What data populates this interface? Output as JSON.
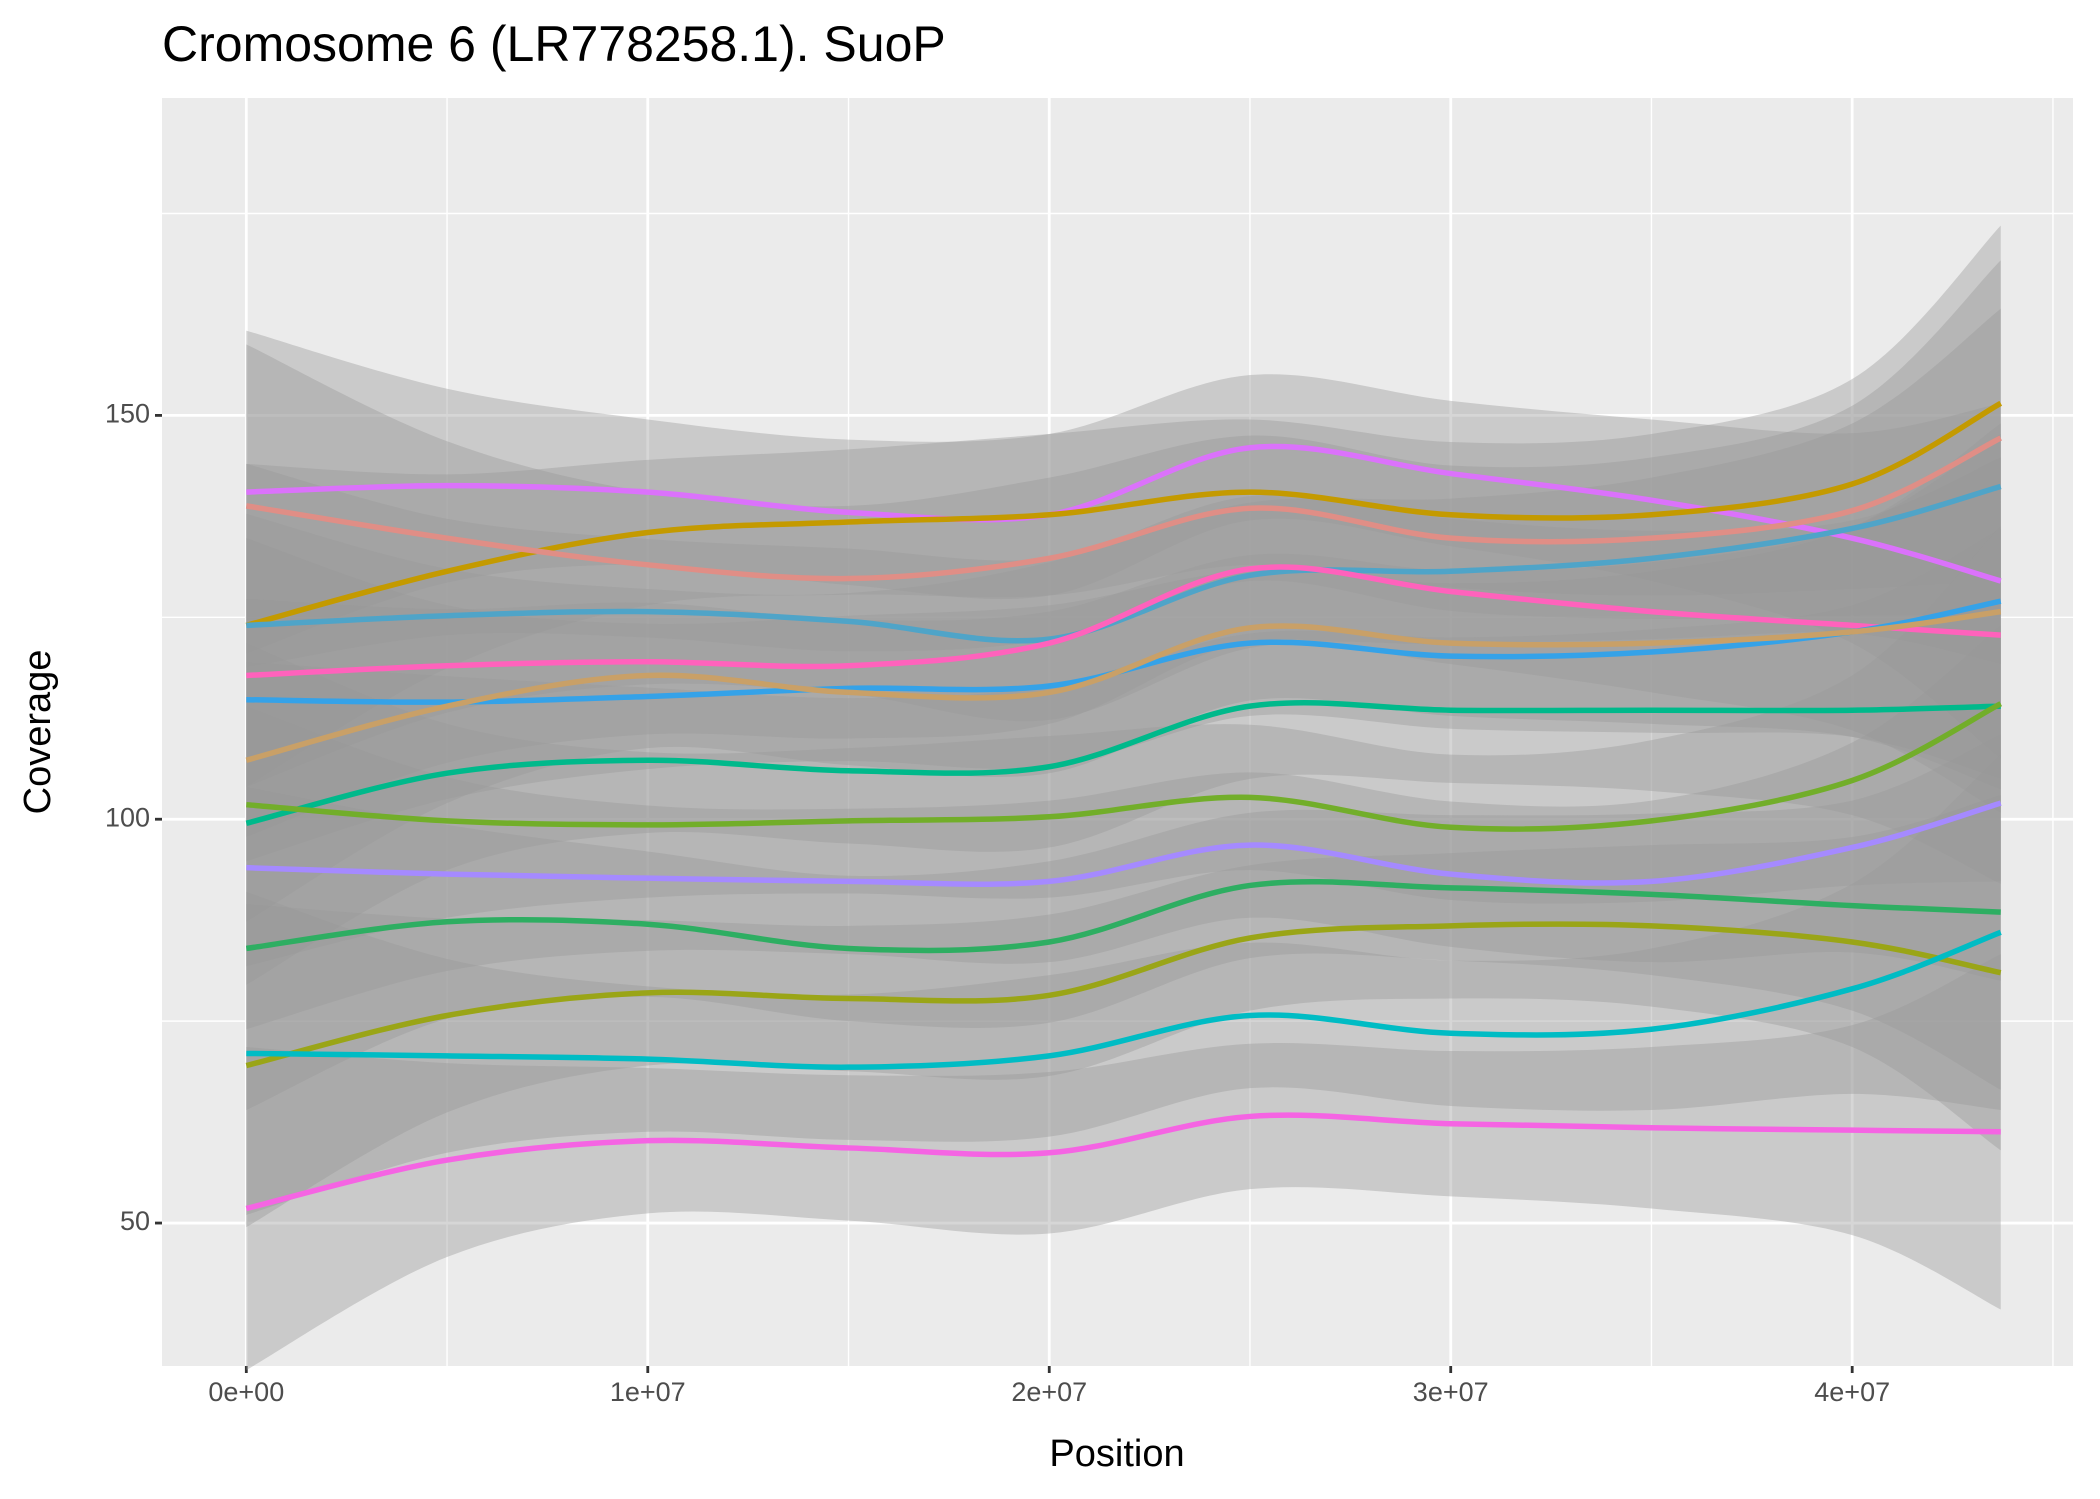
{
  "chart_data": {
    "type": "line",
    "title": "Cromosome 6 (LR778258.1). SuoP",
    "x_label": "Position",
    "y_label": "Coverage",
    "x": [
      0,
      5000000,
      10000000,
      15000000,
      20000000,
      25000000,
      30000000,
      35000000,
      40000000,
      43700000
    ],
    "xlim": [
      -2100000,
      45500000
    ],
    "ylim": [
      32.3,
      189.3
    ],
    "xticks": [
      {
        "value": 0,
        "label": "0e+00"
      },
      {
        "value": 10000000,
        "label": "1e+07"
      },
      {
        "value": 20000000,
        "label": "2e+07"
      },
      {
        "value": 30000000,
        "label": "3e+07"
      },
      {
        "value": 40000000,
        "label": "4e+07"
      }
    ],
    "yticks": [
      50,
      100,
      150
    ],
    "grid": true,
    "series": [
      {
        "color": "#DB72FB",
        "values": [
          140.5,
          141.3,
          140.5,
          138,
          137.7,
          146,
          142.8,
          139.5,
          134.8,
          129.5
        ],
        "se": [
          20,
          12,
          9,
          9,
          10,
          9,
          9,
          10,
          13,
          22
        ]
      },
      {
        "color": "#C49A00",
        "values": [
          124,
          130.7,
          135.5,
          136.8,
          137.7,
          140.5,
          137.7,
          137.7,
          141.5,
          151.5
        ],
        "se": [
          20,
          12,
          9,
          9,
          10,
          9,
          9,
          10,
          13,
          22
        ]
      },
      {
        "color": "#E08E86",
        "values": [
          138.8,
          134.8,
          131.5,
          129.8,
          132.3,
          138.5,
          134.8,
          134.8,
          138.2,
          147.2
        ],
        "se": [
          20,
          12,
          9,
          9,
          10,
          9,
          9,
          10,
          13,
          22
        ]
      },
      {
        "color": "#4FA4C8",
        "values": [
          124,
          125.2,
          125.7,
          124.5,
          122.3,
          130.2,
          130.7,
          132.3,
          136,
          141.2
        ],
        "se": [
          20,
          12,
          9,
          9,
          10,
          9,
          9,
          10,
          13,
          22
        ]
      },
      {
        "color": "#FF62BC",
        "values": [
          117.8,
          119,
          119.5,
          119,
          121.8,
          131,
          128.2,
          125.7,
          124,
          122.8
        ],
        "se": [
          20,
          12,
          9,
          9,
          10,
          9,
          9,
          10,
          13,
          22
        ]
      },
      {
        "color": "#35A2E8",
        "values": [
          114.8,
          114.5,
          115.2,
          116.2,
          116.5,
          121.8,
          120.2,
          120.7,
          123.2,
          127
        ],
        "se": [
          20,
          12,
          9,
          9,
          10,
          9,
          9,
          10,
          13,
          22
        ]
      },
      {
        "color": "#C9A067",
        "values": [
          107.3,
          114,
          117.8,
          115.7,
          115.7,
          123.7,
          121.8,
          121.8,
          123.2,
          125.7
        ],
        "se": [
          20,
          12,
          9,
          9,
          10,
          9,
          9,
          10,
          13,
          22
        ]
      },
      {
        "color": "#00B98B",
        "values": [
          99.5,
          105.7,
          107.3,
          106,
          106.5,
          114,
          113.5,
          113.5,
          113.5,
          114
        ],
        "se": [
          20,
          12,
          9,
          9,
          10,
          9,
          9,
          10,
          13,
          22
        ]
      },
      {
        "color": "#72AE2A",
        "values": [
          101.8,
          99.8,
          99.3,
          99.8,
          100.3,
          102.7,
          99,
          99.8,
          104.8,
          114.3
        ],
        "se": [
          20,
          12,
          9,
          9,
          10,
          9,
          9,
          10,
          13,
          22
        ]
      },
      {
        "color": "#A58AFF",
        "values": [
          94,
          93.2,
          92.7,
          92.3,
          92.3,
          96.8,
          93.2,
          92.3,
          96.5,
          102
        ],
        "se": [
          20,
          12,
          9,
          9,
          10,
          9,
          9,
          10,
          13,
          22
        ]
      },
      {
        "color": "#2EAE62",
        "values": [
          84,
          87.3,
          87,
          84,
          84.8,
          91.8,
          91.5,
          90.7,
          89.3,
          88.5
        ],
        "se": [
          20,
          12,
          9,
          9,
          10,
          9,
          9,
          10,
          13,
          22
        ]
      },
      {
        "color": "#9AA517",
        "values": [
          69.5,
          75.7,
          78.5,
          77.8,
          78.2,
          85.3,
          86.8,
          86.8,
          84.8,
          81
        ],
        "se": [
          20,
          12,
          9,
          9,
          10,
          9,
          9,
          10,
          13,
          22
        ]
      },
      {
        "color": "#00BCC4",
        "values": [
          71,
          70.7,
          70.3,
          69.3,
          70.7,
          75.7,
          73.5,
          74,
          79,
          86
        ],
        "se": [
          20,
          12,
          9,
          9,
          10,
          9,
          9,
          10,
          13,
          22
        ]
      },
      {
        "color": "#F564E3",
        "values": [
          51.8,
          57.8,
          60.2,
          59.3,
          58.7,
          63.2,
          62.3,
          61.8,
          61.5,
          61.3
        ],
        "se": [
          20,
          12,
          9,
          9,
          10,
          9,
          9,
          10,
          13,
          22
        ]
      }
    ]
  }
}
